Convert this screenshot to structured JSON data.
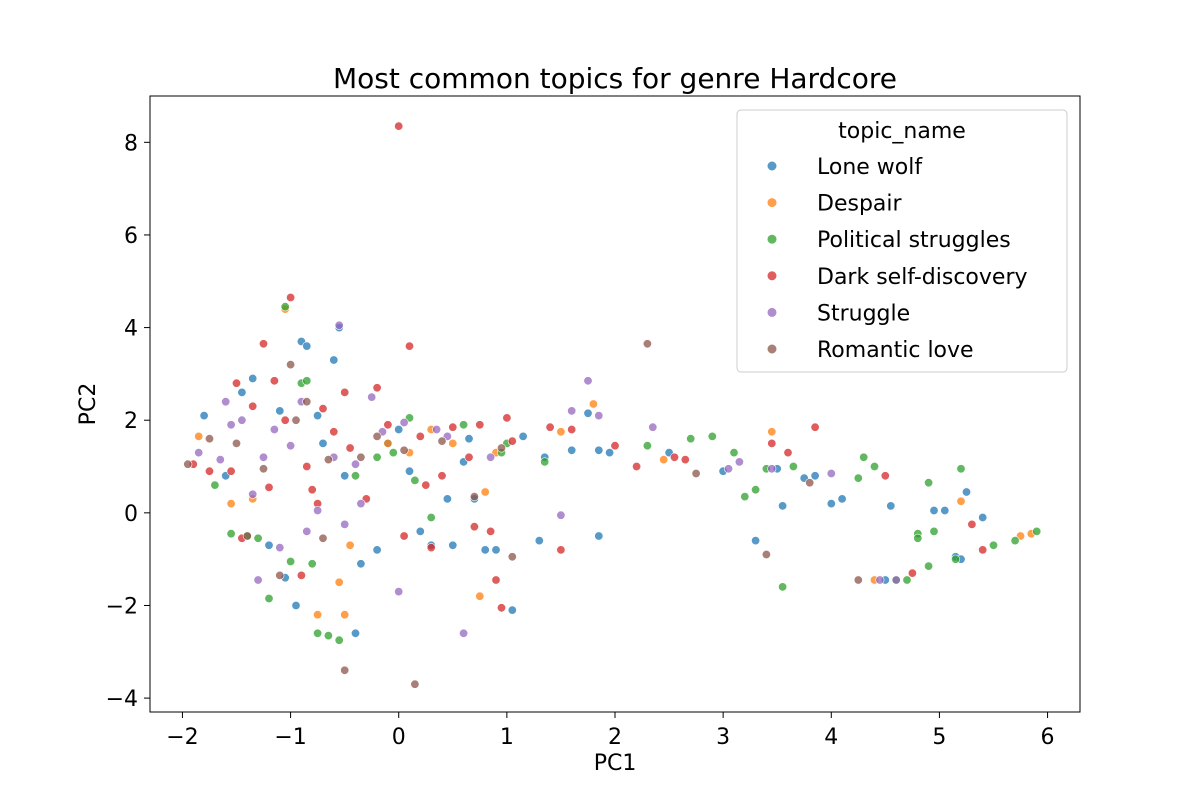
{
  "chart_data": {
    "type": "scatter",
    "title": "Most common topics for genre Hardcore",
    "xlabel": "PC1",
    "ylabel": "PC2",
    "xlim": [
      -2.3,
      6.3
    ],
    "ylim": [
      -4.3,
      9.0
    ],
    "xticks": [
      -2,
      -1,
      0,
      1,
      2,
      3,
      4,
      5,
      6
    ],
    "yticks": [
      -4,
      -2,
      0,
      2,
      4,
      6,
      8
    ],
    "grid": false,
    "legend": {
      "title": "topic_name",
      "placement": "top-right"
    },
    "series": [
      {
        "name": "Lone wolf",
        "color": "#1f77b4",
        "points": [
          [
            -1.8,
            2.1
          ],
          [
            -1.6,
            0.8
          ],
          [
            -1.45,
            2.6
          ],
          [
            -1.35,
            2.9
          ],
          [
            -1.2,
            -0.7
          ],
          [
            -1.1,
            2.2
          ],
          [
            -1.05,
            -1.4
          ],
          [
            -0.95,
            -2.0
          ],
          [
            -0.9,
            3.7
          ],
          [
            -0.85,
            3.6
          ],
          [
            -0.75,
            2.1
          ],
          [
            -0.7,
            1.5
          ],
          [
            -0.6,
            3.3
          ],
          [
            -0.55,
            4.0
          ],
          [
            -0.5,
            0.8
          ],
          [
            -0.4,
            -2.6
          ],
          [
            -0.35,
            -1.1
          ],
          [
            -0.2,
            -0.8
          ],
          [
            -0.1,
            1.5
          ],
          [
            0.0,
            1.8
          ],
          [
            0.1,
            0.9
          ],
          [
            0.2,
            -0.4
          ],
          [
            0.3,
            -0.7
          ],
          [
            0.45,
            0.3
          ],
          [
            0.5,
            -0.7
          ],
          [
            0.6,
            1.1
          ],
          [
            0.65,
            1.6
          ],
          [
            0.7,
            0.3
          ],
          [
            0.8,
            -0.8
          ],
          [
            0.9,
            -0.8
          ],
          [
            1.05,
            -2.1
          ],
          [
            1.15,
            1.65
          ],
          [
            1.3,
            -0.6
          ],
          [
            1.35,
            1.2
          ],
          [
            1.6,
            1.35
          ],
          [
            1.75,
            2.15
          ],
          [
            1.85,
            1.35
          ],
          [
            1.85,
            -0.5
          ],
          [
            1.95,
            1.3
          ],
          [
            2.5,
            1.3
          ],
          [
            3.0,
            0.9
          ],
          [
            3.3,
            -0.6
          ],
          [
            3.5,
            0.95
          ],
          [
            3.55,
            0.15
          ],
          [
            3.75,
            0.75
          ],
          [
            3.85,
            0.8
          ],
          [
            4.0,
            0.2
          ],
          [
            4.1,
            0.3
          ],
          [
            4.5,
            -1.45
          ],
          [
            4.55,
            0.15
          ],
          [
            4.95,
            0.05
          ],
          [
            5.05,
            0.05
          ],
          [
            5.15,
            -0.95
          ],
          [
            5.2,
            -1.0
          ],
          [
            5.25,
            0.45
          ],
          [
            5.4,
            -0.1
          ]
        ]
      },
      {
        "name": "Despair",
        "color": "#ff7f0e",
        "points": [
          [
            -1.85,
            1.65
          ],
          [
            -1.55,
            0.2
          ],
          [
            -1.35,
            0.3
          ],
          [
            -1.05,
            4.4
          ],
          [
            -0.75,
            -2.2
          ],
          [
            -0.55,
            -1.5
          ],
          [
            -0.5,
            -2.2
          ],
          [
            -0.45,
            -0.7
          ],
          [
            -0.1,
            1.5
          ],
          [
            0.1,
            1.3
          ],
          [
            0.3,
            1.8
          ],
          [
            0.5,
            1.5
          ],
          [
            0.75,
            -1.8
          ],
          [
            0.8,
            0.45
          ],
          [
            0.9,
            1.3
          ],
          [
            1.5,
            1.75
          ],
          [
            1.8,
            2.35
          ],
          [
            2.45,
            1.15
          ],
          [
            3.45,
            1.75
          ],
          [
            4.4,
            -1.45
          ],
          [
            5.2,
            0.25
          ],
          [
            5.75,
            -0.5
          ],
          [
            5.85,
            -0.45
          ]
        ]
      },
      {
        "name": "Political struggles",
        "color": "#2ca02c",
        "points": [
          [
            -1.7,
            0.6
          ],
          [
            -1.55,
            -0.45
          ],
          [
            -1.4,
            -0.5
          ],
          [
            -1.3,
            -0.55
          ],
          [
            -1.2,
            -1.85
          ],
          [
            -1.05,
            4.45
          ],
          [
            -1.0,
            -1.05
          ],
          [
            -0.9,
            2.8
          ],
          [
            -0.85,
            2.85
          ],
          [
            -0.8,
            -1.1
          ],
          [
            -0.75,
            -2.6
          ],
          [
            -0.65,
            -2.65
          ],
          [
            -0.55,
            -2.75
          ],
          [
            -0.4,
            0.8
          ],
          [
            -0.2,
            1.2
          ],
          [
            -0.05,
            1.3
          ],
          [
            0.1,
            2.05
          ],
          [
            0.15,
            0.7
          ],
          [
            0.3,
            -0.1
          ],
          [
            0.6,
            1.9
          ],
          [
            0.95,
            1.3
          ],
          [
            1.0,
            1.5
          ],
          [
            1.35,
            1.1
          ],
          [
            2.3,
            1.45
          ],
          [
            2.7,
            1.6
          ],
          [
            2.9,
            1.65
          ],
          [
            3.1,
            1.3
          ],
          [
            3.2,
            0.35
          ],
          [
            3.3,
            0.5
          ],
          [
            3.4,
            0.95
          ],
          [
            3.55,
            -1.6
          ],
          [
            3.65,
            1.0
          ],
          [
            4.25,
            0.75
          ],
          [
            4.3,
            1.2
          ],
          [
            4.4,
            1.0
          ],
          [
            4.6,
            -1.45
          ],
          [
            4.7,
            -1.45
          ],
          [
            4.8,
            -0.45
          ],
          [
            4.8,
            -0.55
          ],
          [
            4.9,
            0.65
          ],
          [
            4.9,
            -1.15
          ],
          [
            4.95,
            -0.4
          ],
          [
            5.15,
            -1.0
          ],
          [
            5.2,
            0.95
          ],
          [
            5.5,
            -0.7
          ],
          [
            5.7,
            -0.6
          ],
          [
            5.9,
            -0.4
          ]
        ]
      },
      {
        "name": "Dark self-discovery",
        "color": "#d62728",
        "points": [
          [
            -1.9,
            1.05
          ],
          [
            -1.75,
            0.9
          ],
          [
            -1.55,
            0.9
          ],
          [
            -1.5,
            2.8
          ],
          [
            -1.45,
            -0.55
          ],
          [
            -1.35,
            2.3
          ],
          [
            -1.25,
            3.65
          ],
          [
            -1.2,
            0.55
          ],
          [
            -1.15,
            2.85
          ],
          [
            -1.05,
            2.0
          ],
          [
            -1.0,
            4.65
          ],
          [
            -0.9,
            -1.35
          ],
          [
            -0.85,
            1.0
          ],
          [
            -0.8,
            0.5
          ],
          [
            -0.75,
            0.2
          ],
          [
            -0.7,
            2.25
          ],
          [
            -0.6,
            1.75
          ],
          [
            -0.5,
            2.6
          ],
          [
            -0.45,
            1.4
          ],
          [
            -0.3,
            0.3
          ],
          [
            -0.2,
            2.7
          ],
          [
            -0.1,
            1.9
          ],
          [
            0.0,
            8.35
          ],
          [
            0.05,
            -0.5
          ],
          [
            0.1,
            3.6
          ],
          [
            0.2,
            1.65
          ],
          [
            0.25,
            0.6
          ],
          [
            0.3,
            -0.75
          ],
          [
            0.4,
            0.8
          ],
          [
            0.5,
            1.85
          ],
          [
            0.65,
            1.2
          ],
          [
            0.7,
            -0.3
          ],
          [
            0.75,
            1.9
          ],
          [
            0.85,
            -0.4
          ],
          [
            0.9,
            -1.45
          ],
          [
            0.95,
            -2.05
          ],
          [
            1.0,
            2.05
          ],
          [
            1.05,
            1.55
          ],
          [
            1.4,
            1.85
          ],
          [
            1.5,
            -0.8
          ],
          [
            1.6,
            1.8
          ],
          [
            2.0,
            1.45
          ],
          [
            2.2,
            1.0
          ],
          [
            2.55,
            1.2
          ],
          [
            2.65,
            1.15
          ],
          [
            3.45,
            1.5
          ],
          [
            3.6,
            1.3
          ],
          [
            3.85,
            1.85
          ],
          [
            4.5,
            0.8
          ],
          [
            4.75,
            -1.3
          ],
          [
            5.3,
            -0.25
          ],
          [
            5.4,
            -0.8
          ]
        ]
      },
      {
        "name": "Struggle",
        "color": "#9467bd",
        "points": [
          [
            -1.85,
            1.3
          ],
          [
            -1.65,
            1.15
          ],
          [
            -1.6,
            2.4
          ],
          [
            -1.55,
            1.9
          ],
          [
            -1.45,
            2.0
          ],
          [
            -1.35,
            0.4
          ],
          [
            -1.3,
            -1.45
          ],
          [
            -1.25,
            1.2
          ],
          [
            -1.15,
            1.8
          ],
          [
            -1.1,
            -0.75
          ],
          [
            -1.0,
            1.45
          ],
          [
            -0.9,
            2.4
          ],
          [
            -0.85,
            -0.4
          ],
          [
            -0.75,
            0.05
          ],
          [
            -0.6,
            1.2
          ],
          [
            -0.55,
            4.05
          ],
          [
            -0.5,
            -0.25
          ],
          [
            -0.4,
            1.05
          ],
          [
            -0.35,
            0.2
          ],
          [
            -0.25,
            2.5
          ],
          [
            -0.15,
            1.75
          ],
          [
            0.0,
            -1.7
          ],
          [
            0.05,
            1.95
          ],
          [
            0.35,
            1.8
          ],
          [
            0.45,
            1.65
          ],
          [
            0.6,
            -2.6
          ],
          [
            0.85,
            1.2
          ],
          [
            1.5,
            -0.05
          ],
          [
            1.6,
            2.2
          ],
          [
            1.75,
            2.85
          ],
          [
            1.85,
            2.1
          ],
          [
            2.35,
            1.85
          ],
          [
            3.05,
            0.95
          ],
          [
            3.15,
            1.1
          ],
          [
            3.45,
            0.95
          ],
          [
            4.0,
            0.85
          ],
          [
            4.45,
            -1.45
          ],
          [
            4.6,
            -1.45
          ]
        ]
      },
      {
        "name": "Romantic love",
        "color": "#8c564b",
        "points": [
          [
            -1.95,
            1.05
          ],
          [
            -1.75,
            1.6
          ],
          [
            -1.5,
            1.5
          ],
          [
            -1.4,
            -0.5
          ],
          [
            -1.25,
            0.95
          ],
          [
            -1.1,
            -1.35
          ],
          [
            -1.0,
            3.2
          ],
          [
            -0.95,
            2.0
          ],
          [
            -0.85,
            2.4
          ],
          [
            -0.7,
            -0.55
          ],
          [
            -0.65,
            1.15
          ],
          [
            -0.5,
            -3.4
          ],
          [
            -0.35,
            1.2
          ],
          [
            -0.2,
            1.65
          ],
          [
            0.05,
            1.35
          ],
          [
            0.15,
            -3.7
          ],
          [
            0.4,
            1.55
          ],
          [
            0.7,
            0.35
          ],
          [
            0.95,
            1.4
          ],
          [
            1.05,
            -0.95
          ],
          [
            2.3,
            3.65
          ],
          [
            2.75,
            0.85
          ],
          [
            3.4,
            -0.9
          ],
          [
            3.8,
            0.65
          ],
          [
            4.25,
            -1.45
          ]
        ]
      }
    ]
  }
}
